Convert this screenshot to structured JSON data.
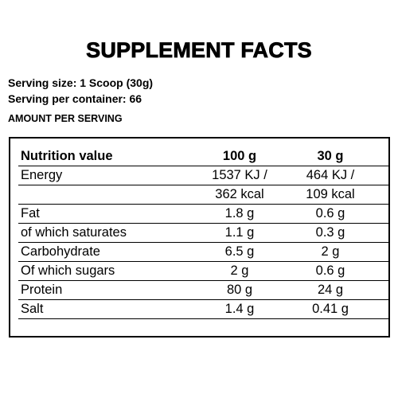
{
  "header": {
    "title": "SUPPLEMENT FACTS",
    "serving_size": "Serving size: 1 Scoop (30g)",
    "servings": "Serving per container: 66",
    "amount": "AMOUNT PER SERVING"
  },
  "table": {
    "columns": [
      "Nutrition value",
      "100 g",
      "30 g"
    ],
    "rows": [
      [
        "Energy",
        "1537 KJ /",
        "464 KJ /"
      ],
      [
        "",
        "362 kcal",
        "109 kcal"
      ],
      [
        "Fat",
        "1.8 g",
        "0.6 g"
      ],
      [
        "of which saturates",
        "1.1 g",
        "0.3 g"
      ],
      [
        "Carbohydrate",
        "6.5 g",
        "2 g"
      ],
      [
        "Of which sugars",
        "2 g",
        "0.6 g"
      ],
      [
        "Protein",
        "80 g",
        "24 g"
      ],
      [
        "Salt",
        "1.4 g",
        "0.41 g"
      ]
    ]
  }
}
